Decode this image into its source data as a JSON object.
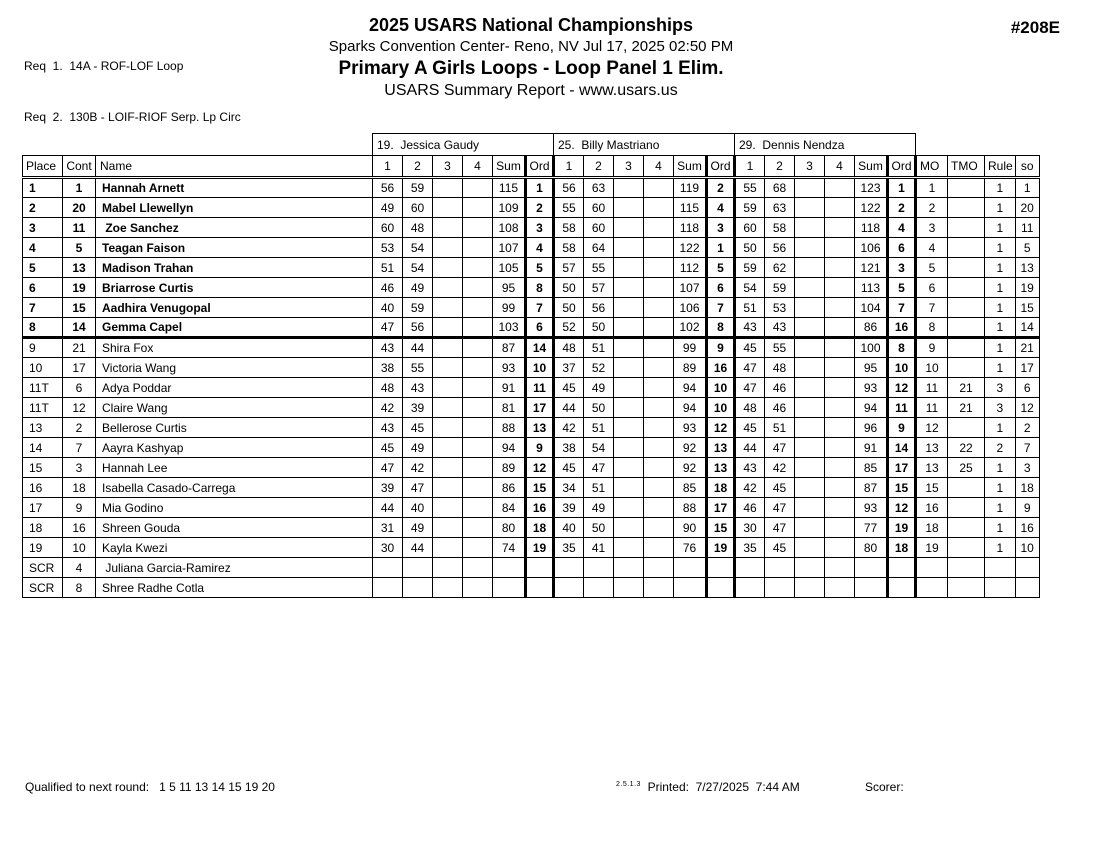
{
  "header": {
    "req1": "Req  1.  14A - ROF-LOF Loop",
    "req2": "Req  2.  130B - LOIF-RIOF Serp. Lp Circ",
    "title": "2025 USARS National Championships",
    "venue": "Sparks Convention Center- Reno, NV  Jul 17, 2025  02:50 PM",
    "event": "Primary A Girls Loops - Loop Panel 1 Elim.",
    "report_line": "USARS Summary Report - www.usars.us",
    "doc_number": "#208E"
  },
  "table": {
    "judges": [
      "19.  Jessica Gaudy",
      "25.  Billy Mastriano",
      "29.  Dennis Nendza"
    ],
    "left_headers": {
      "place": "Place",
      "cont": "Cont",
      "name": "Name"
    },
    "judge_cols": [
      "1",
      "2",
      "3",
      "4",
      "Sum",
      "Ord"
    ],
    "right_headers": {
      "mo": "MO",
      "tmo": "TMO",
      "rule": "Rule",
      "so": "so"
    },
    "rows": [
      {
        "place": "1",
        "cont": "1",
        "name": "Hannah Arnett",
        "qualified": true,
        "j1": [
          "56",
          "59",
          "",
          "",
          "115",
          "1"
        ],
        "j2": [
          "56",
          "63",
          "",
          "",
          "119",
          "2"
        ],
        "j3": [
          "55",
          "68",
          "",
          "",
          "123",
          "1"
        ],
        "mo": "1",
        "tmo": "",
        "rule": "1",
        "so": "1"
      },
      {
        "place": "2",
        "cont": "20",
        "name": "Mabel Llewellyn",
        "qualified": true,
        "j1": [
          "49",
          "60",
          "",
          "",
          "109",
          "2"
        ],
        "j2": [
          "55",
          "60",
          "",
          "",
          "115",
          "4"
        ],
        "j3": [
          "59",
          "63",
          "",
          "",
          "122",
          "2"
        ],
        "mo": "2",
        "tmo": "",
        "rule": "1",
        "so": "20"
      },
      {
        "place": "3",
        "cont": "11",
        "name": " Zoe Sanchez",
        "qualified": true,
        "j1": [
          "60",
          "48",
          "",
          "",
          "108",
          "3"
        ],
        "j2": [
          "58",
          "60",
          "",
          "",
          "118",
          "3"
        ],
        "j3": [
          "60",
          "58",
          "",
          "",
          "118",
          "4"
        ],
        "mo": "3",
        "tmo": "",
        "rule": "1",
        "so": "11"
      },
      {
        "place": "4",
        "cont": "5",
        "name": "Teagan Faison",
        "qualified": true,
        "j1": [
          "53",
          "54",
          "",
          "",
          "107",
          "4"
        ],
        "j2": [
          "58",
          "64",
          "",
          "",
          "122",
          "1"
        ],
        "j3": [
          "50",
          "56",
          "",
          "",
          "106",
          "6"
        ],
        "mo": "4",
        "tmo": "",
        "rule": "1",
        "so": "5"
      },
      {
        "place": "5",
        "cont": "13",
        "name": "Madison Trahan",
        "qualified": true,
        "j1": [
          "51",
          "54",
          "",
          "",
          "105",
          "5"
        ],
        "j2": [
          "57",
          "55",
          "",
          "",
          "112",
          "5"
        ],
        "j3": [
          "59",
          "62",
          "",
          "",
          "121",
          "3"
        ],
        "mo": "5",
        "tmo": "",
        "rule": "1",
        "so": "13"
      },
      {
        "place": "6",
        "cont": "19",
        "name": "Briarrose Curtis",
        "qualified": true,
        "j1": [
          "46",
          "49",
          "",
          "",
          "95",
          "8"
        ],
        "j2": [
          "50",
          "57",
          "",
          "",
          "107",
          "6"
        ],
        "j3": [
          "54",
          "59",
          "",
          "",
          "113",
          "5"
        ],
        "mo": "6",
        "tmo": "",
        "rule": "1",
        "so": "19"
      },
      {
        "place": "7",
        "cont": "15",
        "name": "Aadhira Venugopal",
        "qualified": true,
        "j1": [
          "40",
          "59",
          "",
          "",
          "99",
          "7"
        ],
        "j2": [
          "50",
          "56",
          "",
          "",
          "106",
          "7"
        ],
        "j3": [
          "51",
          "53",
          "",
          "",
          "104",
          "7"
        ],
        "mo": "7",
        "tmo": "",
        "rule": "1",
        "so": "15"
      },
      {
        "place": "8",
        "cont": "14",
        "name": "Gemma Capel",
        "qualified": true,
        "j1": [
          "47",
          "56",
          "",
          "",
          "103",
          "6"
        ],
        "j2": [
          "52",
          "50",
          "",
          "",
          "102",
          "8"
        ],
        "j3": [
          "43",
          "43",
          "",
          "",
          "86",
          "16"
        ],
        "mo": "8",
        "tmo": "",
        "rule": "1",
        "so": "14"
      },
      {
        "place": "9",
        "cont": "21",
        "name": "Shira Fox",
        "qualified": false,
        "j1": [
          "43",
          "44",
          "",
          "",
          "87",
          "14"
        ],
        "j2": [
          "48",
          "51",
          "",
          "",
          "99",
          "9"
        ],
        "j3": [
          "45",
          "55",
          "",
          "",
          "100",
          "8"
        ],
        "mo": "9",
        "tmo": "",
        "rule": "1",
        "so": "21"
      },
      {
        "place": "10",
        "cont": "17",
        "name": "Victoria Wang",
        "qualified": false,
        "j1": [
          "38",
          "55",
          "",
          "",
          "93",
          "10"
        ],
        "j2": [
          "37",
          "52",
          "",
          "",
          "89",
          "16"
        ],
        "j3": [
          "47",
          "48",
          "",
          "",
          "95",
          "10"
        ],
        "mo": "10",
        "tmo": "",
        "rule": "1",
        "so": "17"
      },
      {
        "place": "11T",
        "cont": "6",
        "name": "Adya Poddar",
        "qualified": false,
        "j1": [
          "48",
          "43",
          "",
          "",
          "91",
          "11"
        ],
        "j2": [
          "45",
          "49",
          "",
          "",
          "94",
          "10"
        ],
        "j3": [
          "47",
          "46",
          "",
          "",
          "93",
          "12"
        ],
        "mo": "11",
        "tmo": "21",
        "rule": "3",
        "so": "6"
      },
      {
        "place": "11T",
        "cont": "12",
        "name": "Claire Wang",
        "qualified": false,
        "j1": [
          "42",
          "39",
          "",
          "",
          "81",
          "17"
        ],
        "j2": [
          "44",
          "50",
          "",
          "",
          "94",
          "10"
        ],
        "j3": [
          "48",
          "46",
          "",
          "",
          "94",
          "11"
        ],
        "mo": "11",
        "tmo": "21",
        "rule": "3",
        "so": "12"
      },
      {
        "place": "13",
        "cont": "2",
        "name": "Bellerose Curtis",
        "qualified": false,
        "j1": [
          "43",
          "45",
          "",
          "",
          "88",
          "13"
        ],
        "j2": [
          "42",
          "51",
          "",
          "",
          "93",
          "12"
        ],
        "j3": [
          "45",
          "51",
          "",
          "",
          "96",
          "9"
        ],
        "mo": "12",
        "tmo": "",
        "rule": "1",
        "so": "2"
      },
      {
        "place": "14",
        "cont": "7",
        "name": "Aayra Kashyap",
        "qualified": false,
        "j1": [
          "45",
          "49",
          "",
          "",
          "94",
          "9"
        ],
        "j2": [
          "38",
          "54",
          "",
          "",
          "92",
          "13"
        ],
        "j3": [
          "44",
          "47",
          "",
          "",
          "91",
          "14"
        ],
        "mo": "13",
        "tmo": "22",
        "rule": "2",
        "so": "7"
      },
      {
        "place": "15",
        "cont": "3",
        "name": "Hannah Lee",
        "qualified": false,
        "j1": [
          "47",
          "42",
          "",
          "",
          "89",
          "12"
        ],
        "j2": [
          "45",
          "47",
          "",
          "",
          "92",
          "13"
        ],
        "j3": [
          "43",
          "42",
          "",
          "",
          "85",
          "17"
        ],
        "mo": "13",
        "tmo": "25",
        "rule": "1",
        "so": "3"
      },
      {
        "place": "16",
        "cont": "18",
        "name": "Isabella Casado-Carrega",
        "qualified": false,
        "j1": [
          "39",
          "47",
          "",
          "",
          "86",
          "15"
        ],
        "j2": [
          "34",
          "51",
          "",
          "",
          "85",
          "18"
        ],
        "j3": [
          "42",
          "45",
          "",
          "",
          "87",
          "15"
        ],
        "mo": "15",
        "tmo": "",
        "rule": "1",
        "so": "18"
      },
      {
        "place": "17",
        "cont": "9",
        "name": "Mia Godino",
        "qualified": false,
        "j1": [
          "44",
          "40",
          "",
          "",
          "84",
          "16"
        ],
        "j2": [
          "39",
          "49",
          "",
          "",
          "88",
          "17"
        ],
        "j3": [
          "46",
          "47",
          "",
          "",
          "93",
          "12"
        ],
        "mo": "16",
        "tmo": "",
        "rule": "1",
        "so": "9"
      },
      {
        "place": "18",
        "cont": "16",
        "name": "Shreen Gouda",
        "qualified": false,
        "j1": [
          "31",
          "49",
          "",
          "",
          "80",
          "18"
        ],
        "j2": [
          "40",
          "50",
          "",
          "",
          "90",
          "15"
        ],
        "j3": [
          "30",
          "47",
          "",
          "",
          "77",
          "19"
        ],
        "mo": "18",
        "tmo": "",
        "rule": "1",
        "so": "16"
      },
      {
        "place": "19",
        "cont": "10",
        "name": "Kayla Kwezi",
        "qualified": false,
        "j1": [
          "30",
          "44",
          "",
          "",
          "74",
          "19"
        ],
        "j2": [
          "35",
          "41",
          "",
          "",
          "76",
          "19"
        ],
        "j3": [
          "35",
          "45",
          "",
          "",
          "80",
          "18"
        ],
        "mo": "19",
        "tmo": "",
        "rule": "1",
        "so": "10"
      },
      {
        "place": "SCR",
        "cont": "4",
        "name": " Juliana Garcia-Ramirez",
        "qualified": false,
        "j1": [
          "",
          "",
          "",
          "",
          "",
          ""
        ],
        "j2": [
          "",
          "",
          "",
          "",
          "",
          ""
        ],
        "j3": [
          "",
          "",
          "",
          "",
          "",
          ""
        ],
        "mo": "",
        "tmo": "",
        "rule": "",
        "so": ""
      },
      {
        "place": "SCR",
        "cont": "8",
        "name": "Shree Radhe Cotla",
        "qualified": false,
        "j1": [
          "",
          "",
          "",
          "",
          "",
          ""
        ],
        "j2": [
          "",
          "",
          "",
          "",
          "",
          ""
        ],
        "j3": [
          "",
          "",
          "",
          "",
          "",
          ""
        ],
        "mo": "",
        "tmo": "",
        "rule": "",
        "so": ""
      }
    ]
  },
  "footer": {
    "qualified": "Qualified to next round:   1 5 11 13 14 15 19 20",
    "version": "2.5.1.3",
    "printed": "Printed:  7/27/2025  7:44 AM",
    "scorer": "Scorer:"
  }
}
